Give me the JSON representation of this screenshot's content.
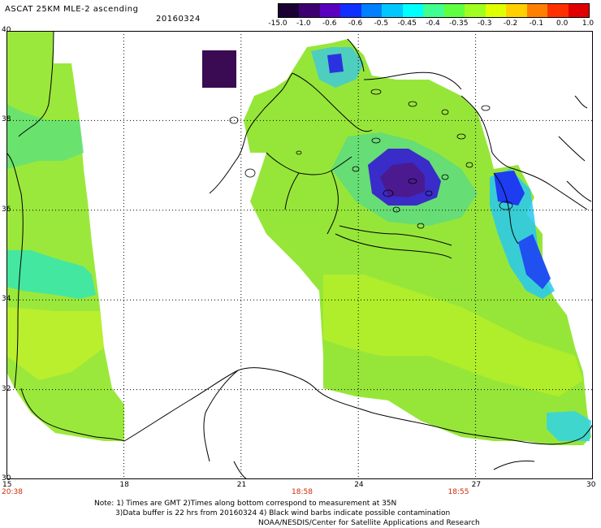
{
  "header": {
    "title": "ASCAT 25KM MLE-2 ascending",
    "date": "20160324"
  },
  "colorbar": {
    "colors": [
      "#1a0033",
      "#3d0070",
      "#5a00c0",
      "#1030ff",
      "#0080ff",
      "#00c8ff",
      "#00ffff",
      "#40ff90",
      "#60ff40",
      "#a0ff20",
      "#e0ff00",
      "#ffd000",
      "#ff8000",
      "#ff3000",
      "#e00000"
    ],
    "labels": [
      "-15.0",
      "-1.0",
      "-0.6",
      "-0.6",
      "-0.5",
      "-0.45",
      "-0.4",
      "-0.35",
      "-0.3",
      "-0.2",
      "-0.1",
      "0.0",
      "1.0"
    ]
  },
  "map": {
    "lon_ticks": [
      "15",
      "18",
      "21",
      "24",
      "27",
      "30"
    ],
    "lat_ticks": [
      "40",
      "38",
      "36",
      "34",
      "32",
      "30"
    ],
    "time_labels": [
      {
        "lon": 15,
        "text": "20:38"
      },
      {
        "lon": 22.5,
        "text": "18:58"
      },
      {
        "lon": 26.5,
        "text": "18:55"
      }
    ],
    "lon_range": [
      15,
      30
    ],
    "lat_range": [
      30,
      40
    ],
    "grid": "dotted"
  },
  "footer": {
    "line1": "Note: 1) Times are GMT 2)Times along bottom correspond to measurement at 35N",
    "line2": "3)Data buffer is 22 hrs from 20160324 4) Black wind barbs indicate possible contamination",
    "line3": "NOAA/NESDIS/Center for Satellite Applications and Research"
  }
}
